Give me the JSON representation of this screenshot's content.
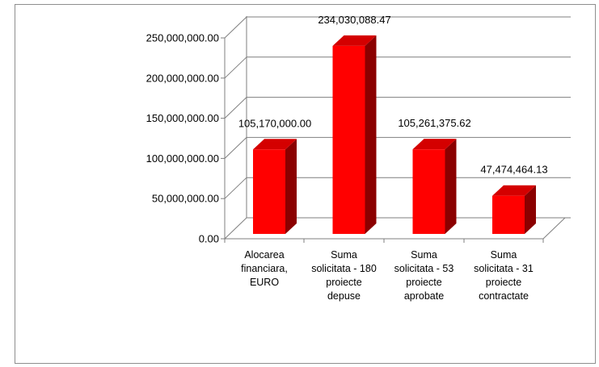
{
  "chart_data": {
    "type": "bar",
    "style": "3d-column",
    "categories": [
      [
        "Alocarea",
        "financiara,",
        "EURO"
      ],
      [
        "Suma",
        "solicitata - 180",
        "proiecte",
        "depuse"
      ],
      [
        "Suma",
        "solicitata - 53",
        "proiecte",
        "aprobate"
      ],
      [
        "Suma",
        "solicitata - 31",
        "proiecte",
        "contractate"
      ]
    ],
    "values": [
      105170000.0,
      234030088.47,
      105261375.62,
      47474464.13
    ],
    "data_labels": [
      "105,170,000.00",
      "234,030,088.47",
      "105,261,375.62",
      "47,474,464.13"
    ],
    "y_ticks": [
      "0.00",
      "50,000,000.00",
      "100,000,000.00",
      "150,000,000.00",
      "200,000,000.00",
      "250,000,000.00"
    ],
    "ylim": [
      0,
      250000000
    ],
    "grid": true,
    "legend": "none",
    "colors": {
      "bar_front": "#ff0000",
      "bar_top": "#d40000",
      "bar_side": "#8b0000",
      "grid": "#7f7f7f"
    }
  }
}
